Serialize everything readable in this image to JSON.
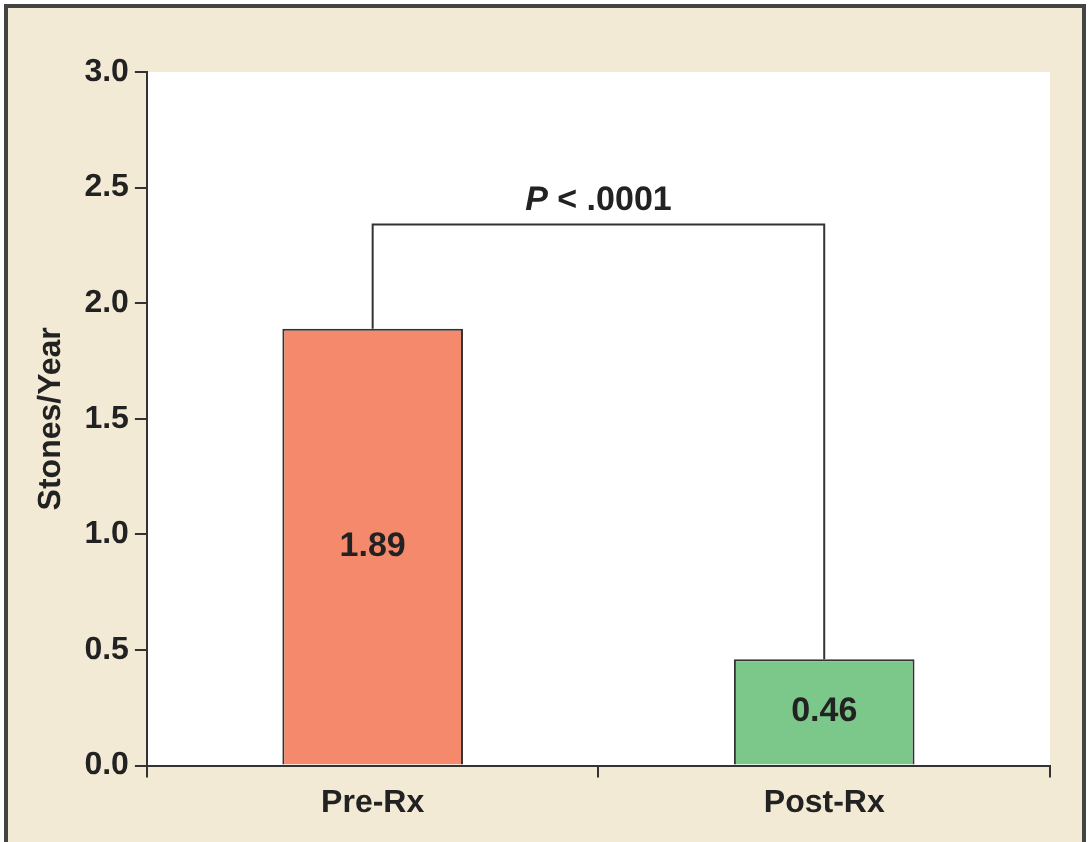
{
  "chart_data": {
    "type": "bar",
    "ylabel": "Stones/Year",
    "categories": [
      "Pre-Rx",
      "Post-Rx"
    ],
    "values": [
      1.89,
      0.46
    ],
    "colors": [
      "#f4896b",
      "#7cc88a"
    ],
    "ylim": [
      0,
      3
    ],
    "yticks": [
      {
        "value": 0,
        "label": "0.0"
      },
      {
        "value": 0.5,
        "label": "0.5"
      },
      {
        "value": 1,
        "label": "1.0"
      },
      {
        "value": 1.5,
        "label": "1.5"
      },
      {
        "value": 2,
        "label": "2.0"
      },
      {
        "value": 2.5,
        "label": "2.5"
      },
      {
        "value": 3,
        "label": "3.0"
      }
    ],
    "data_labels": true,
    "annotations": [
      "P < .0001"
    ],
    "grid": false,
    "legend": false
  }
}
